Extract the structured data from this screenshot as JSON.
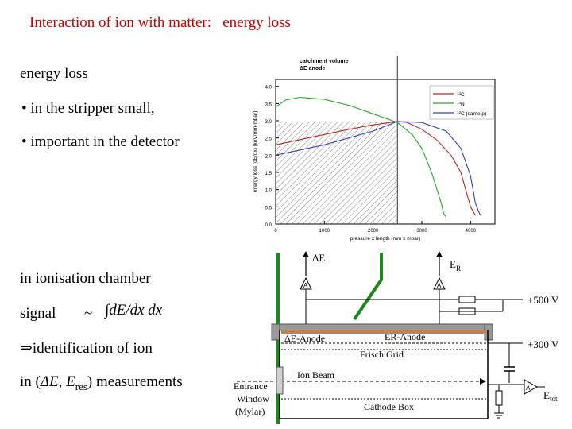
{
  "title": "Interaction of ion with matter:   energy loss",
  "bullets": {
    "heading": "energy loss",
    "b1": "• in the stripper small,",
    "b2": "• important in the detector"
  },
  "lower": {
    "l1": "in ionisation chamber",
    "signal": "signal",
    "tilde": "~",
    "integral": "∫dE/dx dx",
    "ident": "identification of ion",
    "implies": "⇒",
    "meas_pre": "in (",
    "meas_de": "ΔE",
    "meas_comma": ", ",
    "meas_e": "E",
    "meas_sub": "res",
    "meas_post": ") measurements"
  },
  "chart_data": {
    "type": "line",
    "annotation": "catchment volume\nΔE anode",
    "ylabel": "energy loss (dE/dx)",
    "ylabel_unit": "[keV/mm·mbar]",
    "xlabel": "pressure x length",
    "xlabel_unit": "(mm x mbar)",
    "xticks": [
      "0",
      "1000",
      "2000",
      "3000",
      "4000"
    ],
    "yticks": [
      "0.0",
      "0.5",
      "1.0",
      "1.5",
      "2.0",
      "2.5",
      "3.0",
      "3.5",
      "4.0"
    ],
    "xlim": [
      0,
      4500
    ],
    "ylim": [
      0,
      4.2
    ],
    "divider_x": 2500,
    "legend": [
      "14C",
      "14N",
      "12C (same ρ)"
    ],
    "legend_sup": [
      "14",
      "14",
      "12"
    ],
    "legend_base": [
      "C",
      "N",
      "C (same ρ)"
    ],
    "series": [
      {
        "name": "14C",
        "color": "#cc2222",
        "x": [
          0,
          500,
          1000,
          1500,
          2000,
          2500,
          2700,
          3000,
          3300,
          3600,
          3800,
          3900,
          4000,
          4100
        ],
        "y": [
          2.3,
          2.45,
          2.6,
          2.75,
          2.88,
          2.98,
          2.95,
          2.75,
          2.45,
          2.0,
          1.5,
          1.0,
          0.5,
          0.25
        ]
      },
      {
        "name": "14N",
        "color": "#22aa22",
        "x": [
          0,
          200,
          500,
          1000,
          1500,
          2000,
          2500,
          2800,
          3000,
          3200,
          3400,
          3450,
          3500
        ],
        "y": [
          3.4,
          3.6,
          3.68,
          3.62,
          3.45,
          3.2,
          2.95,
          2.6,
          2.2,
          1.5,
          0.6,
          0.3,
          0.2
        ]
      },
      {
        "name": "12C (same ρ)",
        "color": "#3344bb",
        "x": [
          0,
          500,
          1000,
          1500,
          2000,
          2500,
          3000,
          3500,
          3800,
          4000,
          4100,
          4200
        ],
        "y": [
          2.0,
          2.15,
          2.3,
          2.5,
          2.7,
          2.98,
          2.95,
          2.7,
          2.2,
          1.4,
          0.6,
          0.25
        ]
      }
    ]
  },
  "detector": {
    "de_arrow": "ΔE",
    "er_arrow_main": "E",
    "er_arrow_sub": "R",
    "amp": "A",
    "v500": "+500 V",
    "v300": "+300 V",
    "de_anode": "ΔE-Anode",
    "er_anode": "ER-Anode",
    "frisch": "Frisch Grid",
    "ion_beam": "Ion Beam",
    "entrance": [
      "Entrance",
      "Window",
      "(Mylar)"
    ],
    "cathode": "Cathode Box",
    "etot_main": "E",
    "etot_sub": "tot"
  }
}
